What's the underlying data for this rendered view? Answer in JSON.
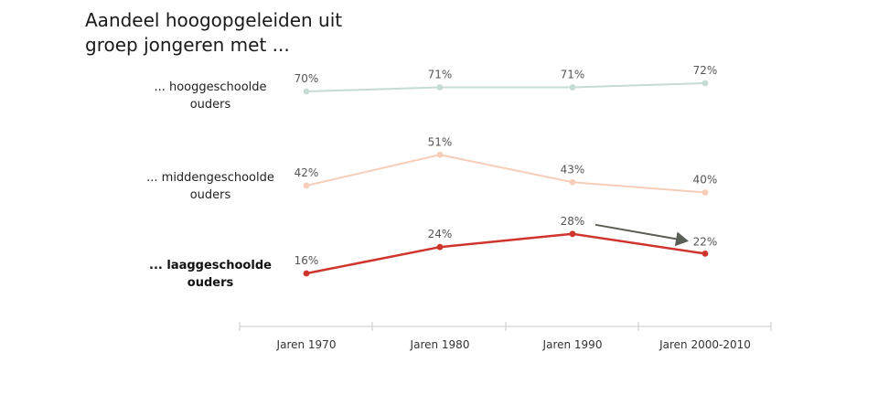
{
  "title_lines": [
    "Aandeel hoogopgeleiden uit",
    "groep jongeren met ..."
  ],
  "chart_data": {
    "type": "line",
    "categories": [
      "Jaren 1970",
      "Jaren 1980",
      "Jaren 1990",
      "Jaren 2000-2010"
    ],
    "series": [
      {
        "name_lines": [
          "... hooggeschoolde",
          "ouders"
        ],
        "values": [
          70,
          71,
          71,
          72
        ],
        "labels": [
          "70%",
          "71%",
          "71%",
          "72%"
        ],
        "color": "#c5dbd5",
        "emphasis": false
      },
      {
        "name_lines": [
          "... middengeschoolde",
          "ouders"
        ],
        "values": [
          42,
          51,
          43,
          40
        ],
        "labels": [
          "42%",
          "51%",
          "43%",
          "40%"
        ],
        "color": "#f6cdb9",
        "emphasis": false
      },
      {
        "name_lines": [
          "... laaggeschoolde",
          "ouders"
        ],
        "values": [
          16,
          24,
          28,
          22
        ],
        "labels": [
          "16%",
          "24%",
          "28%",
          "22%"
        ],
        "color": "#d0352d",
        "emphasis": true
      }
    ],
    "annotation": {
      "type": "arrow",
      "from_category": 2,
      "to_category": 3,
      "series": 2,
      "color": "#5a5f55"
    },
    "colors": {
      "axis": "#c8c8c8",
      "tick_text": "#333333",
      "value_text": "#555555"
    }
  }
}
